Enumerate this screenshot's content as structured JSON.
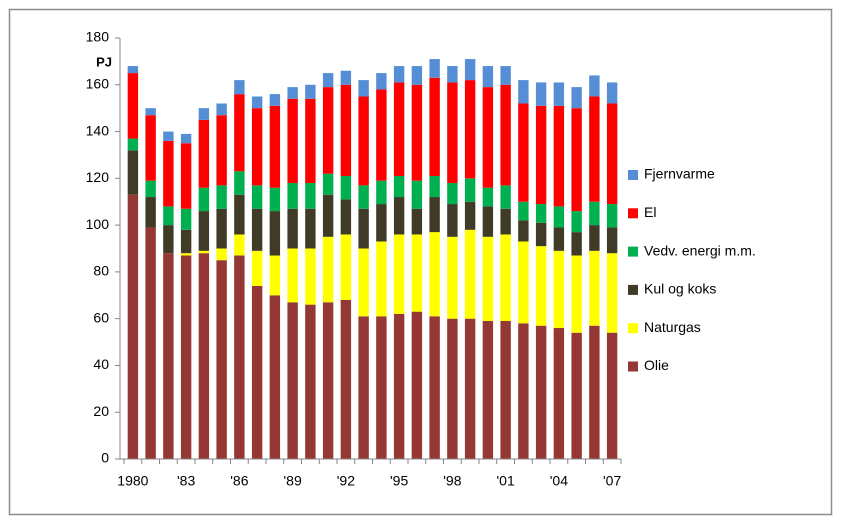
{
  "chart_data": {
    "type": "stacked_bar",
    "y_label": "PJ",
    "categories": [
      "1980",
      null,
      null,
      "'83",
      null,
      null,
      "'86",
      null,
      null,
      "'89",
      null,
      null,
      "'92",
      null,
      null,
      "'95",
      null,
      null,
      "'98",
      null,
      null,
      "'01",
      null,
      null,
      "'04",
      null,
      null,
      "'07"
    ],
    "series": [
      {
        "name": "Olie",
        "color": "#953735",
        "values": [
          113,
          99,
          88,
          87,
          88,
          85,
          87,
          74,
          70,
          67,
          66,
          67,
          68,
          61,
          61,
          62,
          63,
          61,
          60,
          60,
          59,
          59,
          58,
          57,
          56,
          54,
          57,
          54
        ]
      },
      {
        "name": "Naturgas",
        "color": "#ffff00",
        "values": [
          0,
          0,
          0,
          1,
          1,
          5,
          9,
          15,
          17,
          23,
          24,
          28,
          28,
          29,
          32,
          34,
          33,
          36,
          35,
          38,
          36,
          37,
          35,
          34,
          33,
          33,
          32,
          34
        ]
      },
      {
        "name": "Kul og koks",
        "color": "#3f3b27",
        "values": [
          19,
          13,
          12,
          10,
          17,
          17,
          17,
          18,
          19,
          17,
          17,
          18,
          15,
          17,
          16,
          16,
          11,
          15,
          14,
          12,
          13,
          11,
          9,
          10,
          10,
          10,
          11,
          11
        ]
      },
      {
        "name": "Vedv. energi m.m.",
        "color": "#00b050",
        "values": [
          5,
          7,
          8,
          9,
          10,
          10,
          10,
          10,
          10,
          11,
          11,
          9,
          10,
          10,
          10,
          9,
          12,
          9,
          9,
          10,
          8,
          10,
          8,
          8,
          9,
          9,
          10,
          10
        ]
      },
      {
        "name": "El",
        "color": "#ff0000",
        "values": [
          28,
          28,
          28,
          28,
          29,
          30,
          33,
          33,
          35,
          36,
          36,
          37,
          39,
          38,
          39,
          40,
          41,
          42,
          43,
          42,
          43,
          43,
          42,
          42,
          43,
          44,
          45,
          43
        ]
      },
      {
        "name": "Fjernvarme",
        "color": "#558ed5",
        "values": [
          3,
          3,
          4,
          4,
          5,
          5,
          6,
          5,
          5,
          5,
          6,
          6,
          6,
          7,
          7,
          7,
          8,
          8,
          7,
          9,
          9,
          8,
          10,
          10,
          10,
          9,
          9,
          9
        ]
      }
    ],
    "ylim": [
      0,
      180
    ],
    "yticks": [
      0,
      20,
      40,
      60,
      80,
      100,
      120,
      140,
      160,
      180
    ],
    "grid": false,
    "legend": "right"
  }
}
